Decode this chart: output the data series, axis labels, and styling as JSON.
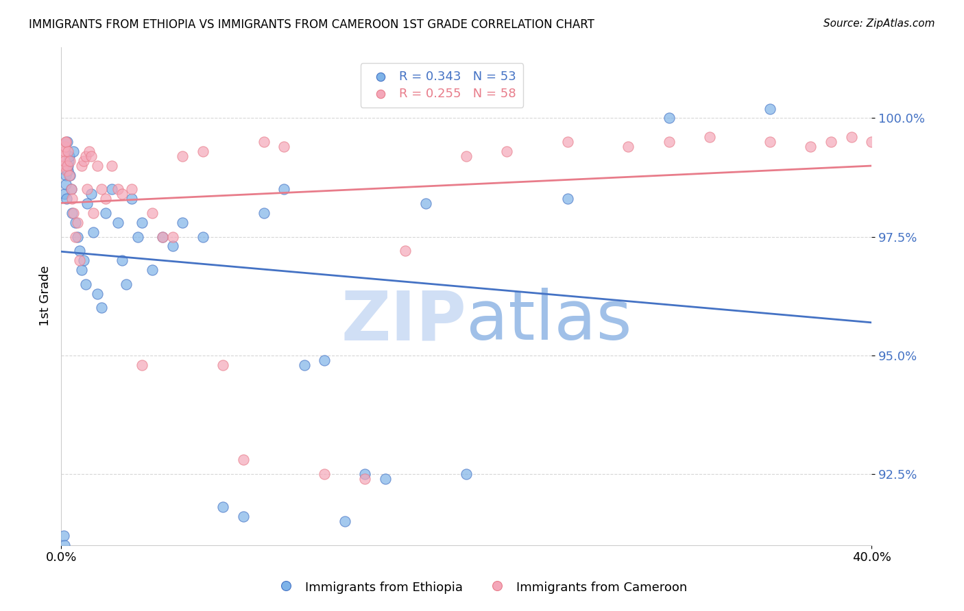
{
  "title": "IMMIGRANTS FROM ETHIOPIA VS IMMIGRANTS FROM CAMEROON 1ST GRADE CORRELATION CHART",
  "source": "Source: ZipAtlas.com",
  "ylabel": "1st Grade",
  "yticks": [
    92.5,
    95.0,
    97.5,
    100.0
  ],
  "ytick_labels": [
    "92.5%",
    "95.0%",
    "97.5%",
    "100.0%"
  ],
  "xlim": [
    0.0,
    40.0
  ],
  "ylim": [
    91.0,
    101.5
  ],
  "legend_ethiopia": "R = 0.343   N = 53",
  "legend_cameroon": "R = 0.255   N = 58",
  "color_ethiopia": "#7eb3e8",
  "color_cameroon": "#f4a7b9",
  "color_line_ethiopia": "#4472c4",
  "color_line_cameroon": "#e87c8a",
  "watermark_color": "#d0dff5",
  "watermark_atlas_color": "#a0c0e8",
  "ethiopia_x": [
    0.12,
    0.15,
    0.18,
    0.22,
    0.25,
    0.28,
    0.3,
    0.32,
    0.35,
    0.38,
    0.42,
    0.45,
    0.5,
    0.55,
    0.6,
    0.7,
    0.8,
    0.9,
    1.0,
    1.1,
    1.2,
    1.3,
    1.5,
    1.6,
    1.8,
    2.0,
    2.2,
    2.5,
    2.8,
    3.0,
    3.2,
    3.5,
    3.8,
    4.0,
    4.5,
    5.0,
    5.5,
    6.0,
    7.0,
    8.0,
    9.0,
    10.0,
    11.0,
    12.0,
    13.0,
    14.0,
    15.0,
    16.0,
    18.0,
    20.0,
    25.0,
    30.0,
    35.0
  ],
  "ethiopia_y": [
    91.2,
    91.0,
    98.4,
    98.8,
    98.6,
    98.3,
    99.5,
    98.9,
    99.0,
    99.1,
    99.2,
    98.8,
    98.5,
    98.0,
    99.3,
    97.8,
    97.5,
    97.2,
    96.8,
    97.0,
    96.5,
    98.2,
    98.4,
    97.6,
    96.3,
    96.0,
    98.0,
    98.5,
    97.8,
    97.0,
    96.5,
    98.3,
    97.5,
    97.8,
    96.8,
    97.5,
    97.3,
    97.8,
    97.5,
    91.8,
    91.6,
    98.0,
    98.5,
    94.8,
    94.9,
    91.5,
    92.5,
    92.4,
    98.2,
    92.5,
    98.3,
    100.0,
    100.2
  ],
  "cameroon_x": [
    0.1,
    0.12,
    0.15,
    0.18,
    0.2,
    0.22,
    0.25,
    0.28,
    0.3,
    0.35,
    0.4,
    0.45,
    0.5,
    0.55,
    0.6,
    0.7,
    0.8,
    0.9,
    1.0,
    1.1,
    1.2,
    1.3,
    1.4,
    1.5,
    1.6,
    1.8,
    2.0,
    2.2,
    2.5,
    2.8,
    3.0,
    3.5,
    4.0,
    4.5,
    5.0,
    5.5,
    6.0,
    7.0,
    8.0,
    9.0,
    10.0,
    11.0,
    13.0,
    15.0,
    17.0,
    20.0,
    22.0,
    25.0,
    28.0,
    30.0,
    32.0,
    35.0,
    37.0,
    38.0,
    39.0,
    40.0,
    41.0,
    42.0
  ],
  "cameroon_y": [
    99.0,
    99.2,
    99.3,
    99.1,
    99.4,
    99.5,
    99.5,
    98.9,
    99.0,
    99.3,
    98.8,
    99.1,
    98.5,
    98.3,
    98.0,
    97.5,
    97.8,
    97.0,
    99.0,
    99.1,
    99.2,
    98.5,
    99.3,
    99.2,
    98.0,
    99.0,
    98.5,
    98.3,
    99.0,
    98.5,
    98.4,
    98.5,
    94.8,
    98.0,
    97.5,
    97.5,
    99.2,
    99.3,
    94.8,
    92.8,
    99.5,
    99.4,
    92.5,
    92.4,
    97.2,
    99.2,
    99.3,
    99.5,
    99.4,
    99.5,
    99.6,
    99.5,
    99.4,
    99.5,
    99.6,
    99.5,
    99.5,
    99.4
  ]
}
